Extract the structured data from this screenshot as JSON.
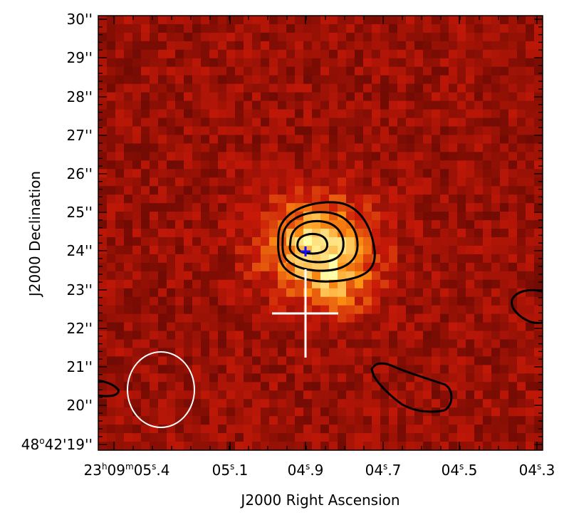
{
  "figure": {
    "x_axis_label": "J2000 Right Ascension",
    "y_axis_label": "J2000 Declination",
    "ra_ticks": [
      {
        "parts": [
          "23",
          "h",
          "09",
          "m",
          "05",
          "s",
          ".4"
        ]
      },
      {
        "parts": [
          "05",
          "s",
          ".1"
        ]
      },
      {
        "parts": [
          "04",
          "s",
          ".9"
        ]
      },
      {
        "parts": [
          "04",
          "s",
          ".7"
        ]
      },
      {
        "parts": [
          "04",
          "s",
          ".5"
        ]
      },
      {
        "parts": [
          "04",
          "s",
          ".3"
        ]
      }
    ],
    "dec_ticks": [
      "48°42'19''",
      "20''",
      "21''",
      "22''",
      "23''",
      "24''",
      "25''",
      "26''",
      "27''",
      "28''",
      "29''",
      "30''"
    ],
    "dec_first_parts": [
      "48",
      "o",
      "42'19''"
    ],
    "colors": {
      "background": "#ffffff",
      "frame": "#000000",
      "contours": "#000000",
      "beam": "#ffffff",
      "white_cross": "#ffffff",
      "blue_marker": "#1010ff",
      "map_dark": "#3a0000",
      "map_mid": "#a01808",
      "map_bright": "#ffff90"
    },
    "colormap": "heat"
  }
}
